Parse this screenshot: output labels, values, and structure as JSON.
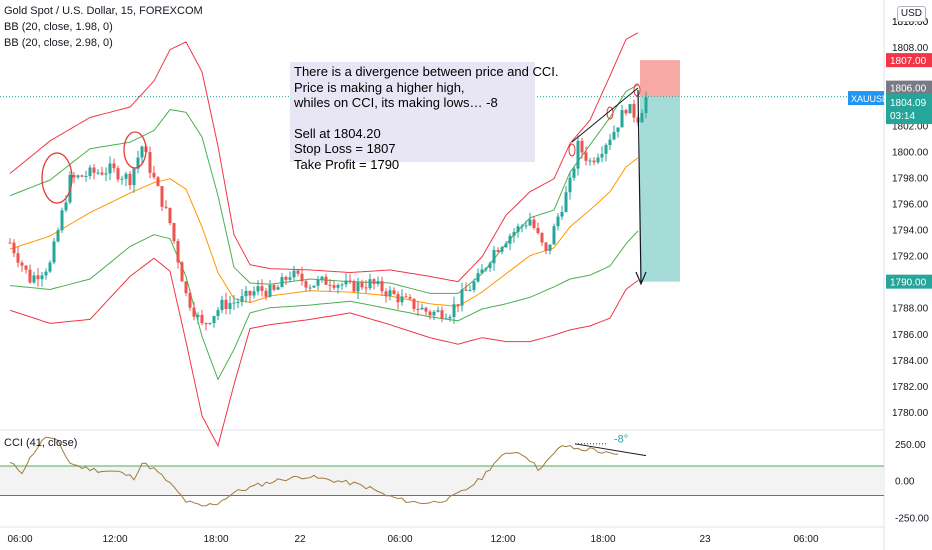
{
  "header": {
    "symbol_line": "Gold Spot / U.S. Dollar, 15, FOREXCOM",
    "bb1": "BB (20, close, 1.98, 0)",
    "bb2": "BB (20, close, 2.98, 0)",
    "cci_label": "CCI (41, close)",
    "currency": "USD"
  },
  "annotation": {
    "lines": [
      "There is a divergence between price and CCI.",
      "Price is making a higher high,",
      "whiles on CCI, its making lows… -8",
      "",
      "Sell at 1804.20",
      "Stop Loss = 1807",
      "Take Profit = 1790"
    ],
    "cci_angle": "-8°"
  },
  "price_labels": {
    "top": "1810.00",
    "stop": "1807.00",
    "mid": "1806.00",
    "entry": "1804.20",
    "symbol": "XAUUSD",
    "last": "1804.09",
    "countdown": "03:14",
    "target": "1790.00"
  },
  "colors": {
    "up": "#26a69a",
    "down": "#ef5350",
    "bb_outer": "#f23645",
    "bb_inner": "#4caf50",
    "basis": "#ff9800",
    "cci": "#a27a3c",
    "stop_zone": "#f7a9a5",
    "target_zone": "#a6dcd8",
    "entry_line": "#26a69a",
    "last_label": "#2196f3"
  },
  "chart_data": {
    "type": "candlestick",
    "title": "Gold Spot / U.S. Dollar, 15, FOREXCOM",
    "price_axis": {
      "ticks": [
        1780,
        1782,
        1784,
        1786,
        1788,
        1790,
        1792,
        1794,
        1796,
        1798,
        1800,
        1802,
        1804,
        1806,
        1808,
        1810
      ],
      "tick_labels": [
        "1780.00",
        "1782.00",
        "1784.00",
        "1786.00",
        "1788.00",
        "1790.00",
        "1792.00",
        "1794.00",
        "1796.00",
        "1798.00",
        "1800.00",
        "1802.00",
        "1804.00",
        "1806.00",
        "1808.00",
        "1810.00"
      ],
      "ylim": [
        1779,
        1811
      ]
    },
    "time_axis": {
      "labels": [
        "06:00",
        "12:00",
        "18:00",
        "22",
        "06:00",
        "12:00",
        "18:00",
        "23",
        "06:00"
      ]
    },
    "close_anchors": [
      [
        0,
        1793.0
      ],
      [
        5,
        1790.2
      ],
      [
        10,
        1791.3
      ],
      [
        15,
        1797.8
      ],
      [
        20,
        1798.3
      ],
      [
        25,
        1798.6
      ],
      [
        30,
        1797.9
      ],
      [
        33,
        1800.4
      ],
      [
        37,
        1797.0
      ],
      [
        40,
        1794.5
      ],
      [
        44,
        1789.0
      ],
      [
        48,
        1786.6
      ],
      [
        53,
        1788.2
      ],
      [
        58,
        1788.6
      ],
      [
        62,
        1789.4
      ],
      [
        66,
        1789.2
      ],
      [
        70,
        1790.6
      ],
      [
        75,
        1789.8
      ],
      [
        80,
        1790.1
      ],
      [
        85,
        1789.6
      ],
      [
        90,
        1789.9
      ],
      [
        95,
        1789.1
      ],
      [
        100,
        1788.3
      ],
      [
        105,
        1787.6
      ],
      [
        110,
        1787.7
      ],
      [
        113,
        1788.9
      ],
      [
        117,
        1790.2
      ],
      [
        121,
        1792.4
      ],
      [
        125,
        1793.6
      ],
      [
        130,
        1794.8
      ],
      [
        134,
        1792.1
      ],
      [
        137,
        1795.0
      ],
      [
        140,
        1797.5
      ],
      [
        142,
        1800.4
      ],
      [
        145,
        1799.2
      ],
      [
        148,
        1800.3
      ],
      [
        151,
        1801.6
      ],
      [
        154,
        1803.4
      ],
      [
        157,
        1802.6
      ],
      [
        159,
        1804.1
      ]
    ],
    "bb_2_98": {
      "upper_anchors": [
        [
          0,
          1798.3
        ],
        [
          10,
          1800.8
        ],
        [
          20,
          1802.6
        ],
        [
          30,
          1803.4
        ],
        [
          36,
          1805.4
        ],
        [
          40,
          1807.8
        ],
        [
          44,
          1808.4
        ],
        [
          48,
          1806.1
        ],
        [
          52,
          1800.4
        ],
        [
          56,
          1793.6
        ],
        [
          60,
          1791.3
        ],
        [
          65,
          1791.0
        ],
        [
          75,
          1790.9
        ],
        [
          85,
          1790.7
        ],
        [
          95,
          1790.9
        ],
        [
          105,
          1790.4
        ],
        [
          112,
          1790.0
        ],
        [
          118,
          1791.9
        ],
        [
          124,
          1795.1
        ],
        [
          130,
          1796.9
        ],
        [
          136,
          1797.9
        ],
        [
          140,
          1800.6
        ],
        [
          145,
          1802.4
        ],
        [
          150,
          1805.8
        ],
        [
          154,
          1808.6
        ],
        [
          157,
          1809.1
        ]
      ],
      "lower_anchors": [
        [
          0,
          1787.8
        ],
        [
          10,
          1786.8
        ],
        [
          20,
          1787.1
        ],
        [
          30,
          1790.4
        ],
        [
          36,
          1791.8
        ],
        [
          40,
          1790.8
        ],
        [
          44,
          1785.4
        ],
        [
          48,
          1779.7
        ],
        [
          52,
          1777.4
        ],
        [
          56,
          1782.1
        ],
        [
          60,
          1786.4
        ],
        [
          65,
          1786.7
        ],
        [
          75,
          1787.1
        ],
        [
          85,
          1787.6
        ],
        [
          95,
          1786.7
        ],
        [
          105,
          1785.7
        ],
        [
          112,
          1785.2
        ],
        [
          118,
          1785.7
        ],
        [
          124,
          1785.4
        ],
        [
          130,
          1785.4
        ],
        [
          136,
          1785.9
        ],
        [
          140,
          1786.3
        ],
        [
          145,
          1786.6
        ],
        [
          150,
          1787.2
        ],
        [
          154,
          1789.4
        ],
        [
          157,
          1790.1
        ]
      ]
    },
    "bb_1_98": {
      "upper_anchors": [
        [
          0,
          1796.6
        ],
        [
          10,
          1797.8
        ],
        [
          20,
          1800.2
        ],
        [
          30,
          1800.7
        ],
        [
          36,
          1801.6
        ],
        [
          40,
          1803.2
        ],
        [
          44,
          1803.0
        ],
        [
          48,
          1801.1
        ],
        [
          52,
          1796.6
        ],
        [
          56,
          1791.1
        ],
        [
          60,
          1789.9
        ],
        [
          65,
          1789.8
        ],
        [
          75,
          1790.2
        ],
        [
          85,
          1790.0
        ],
        [
          95,
          1789.9
        ],
        [
          105,
          1789.1
        ],
        [
          112,
          1789.1
        ],
        [
          118,
          1790.6
        ],
        [
          124,
          1792.9
        ],
        [
          130,
          1794.9
        ],
        [
          136,
          1795.5
        ],
        [
          140,
          1798.4
        ],
        [
          145,
          1800.5
        ],
        [
          150,
          1802.6
        ],
        [
          154,
          1804.6
        ],
        [
          157,
          1805.1
        ]
      ],
      "lower_anchors": [
        [
          0,
          1789.7
        ],
        [
          10,
          1789.4
        ],
        [
          20,
          1790.2
        ],
        [
          30,
          1792.7
        ],
        [
          36,
          1793.6
        ],
        [
          40,
          1793.3
        ],
        [
          44,
          1790.4
        ],
        [
          48,
          1785.8
        ],
        [
          52,
          1782.5
        ],
        [
          56,
          1784.8
        ],
        [
          60,
          1787.6
        ],
        [
          65,
          1788.0
        ],
        [
          75,
          1788.2
        ],
        [
          85,
          1788.5
        ],
        [
          95,
          1787.9
        ],
        [
          105,
          1787.3
        ],
        [
          112,
          1787.0
        ],
        [
          118,
          1787.9
        ],
        [
          124,
          1788.3
        ],
        [
          130,
          1788.8
        ],
        [
          136,
          1789.6
        ],
        [
          140,
          1790.2
        ],
        [
          145,
          1790.5
        ],
        [
          150,
          1791.2
        ],
        [
          154,
          1792.9
        ],
        [
          157,
          1793.9
        ]
      ]
    },
    "basis_anchors": [
      [
        0,
        1792.5
      ],
      [
        10,
        1793.5
      ],
      [
        20,
        1795.3
      ],
      [
        30,
        1796.8
      ],
      [
        36,
        1797.6
      ],
      [
        40,
        1797.9
      ],
      [
        44,
        1797.1
      ],
      [
        48,
        1794.2
      ],
      [
        52,
        1790.7
      ],
      [
        56,
        1788.7
      ],
      [
        60,
        1788.4
      ],
      [
        65,
        1788.9
      ],
      [
        75,
        1789.3
      ],
      [
        85,
        1789.2
      ],
      [
        95,
        1788.9
      ],
      [
        105,
        1788.3
      ],
      [
        112,
        1788.1
      ],
      [
        118,
        1789.2
      ],
      [
        124,
        1790.6
      ],
      [
        130,
        1792.0
      ],
      [
        136,
        1792.6
      ],
      [
        140,
        1794.2
      ],
      [
        145,
        1795.5
      ],
      [
        150,
        1796.9
      ],
      [
        154,
        1798.8
      ],
      [
        157,
        1799.5
      ]
    ],
    "trade": {
      "entry": 1804.2,
      "stop_loss": 1807.0,
      "take_profit": 1790.0
    },
    "cci": {
      "title": "CCI (41, close)",
      "ticks": [
        250,
        0,
        -250
      ],
      "tick_labels": [
        "250.00",
        "0.00",
        "-250.00"
      ],
      "ylim": [
        -300,
        330
      ],
      "upper_level": 100,
      "lower_level": -100,
      "anchors": [
        [
          0,
          120
        ],
        [
          3,
          60
        ],
        [
          6,
          195
        ],
        [
          9,
          300
        ],
        [
          12,
          260
        ],
        [
          15,
          120
        ],
        [
          18,
          90
        ],
        [
          22,
          70
        ],
        [
          27,
          60
        ],
        [
          31,
          20
        ],
        [
          33,
          120
        ],
        [
          36,
          80
        ],
        [
          40,
          -20
        ],
        [
          44,
          -140
        ],
        [
          48,
          -175
        ],
        [
          52,
          -150
        ],
        [
          56,
          -80
        ],
        [
          62,
          -30
        ],
        [
          68,
          10
        ],
        [
          74,
          30
        ],
        [
          80,
          5
        ],
        [
          86,
          -20
        ],
        [
          90,
          -50
        ],
        [
          94,
          -100
        ],
        [
          98,
          -130
        ],
        [
          102,
          -150
        ],
        [
          106,
          -145
        ],
        [
          110,
          -120
        ],
        [
          114,
          -60
        ],
        [
          118,
          20
        ],
        [
          121,
          120
        ],
        [
          124,
          180
        ],
        [
          126,
          200
        ],
        [
          129,
          170
        ],
        [
          132,
          80
        ],
        [
          135,
          150
        ],
        [
          138,
          240
        ],
        [
          141,
          220
        ],
        [
          143,
          210
        ],
        [
          146,
          215
        ],
        [
          148,
          190
        ],
        [
          150,
          180
        ],
        [
          152,
          170
        ]
      ]
    }
  }
}
